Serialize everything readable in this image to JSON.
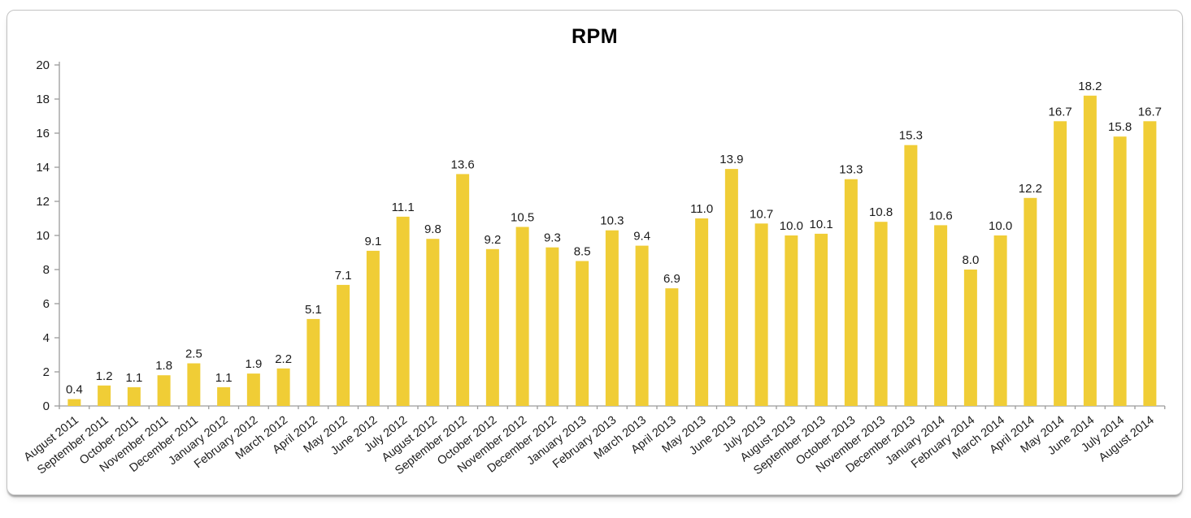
{
  "chart_data": {
    "type": "bar",
    "title": "RPM",
    "categories": [
      "August 2011",
      "September 2011",
      "October 2011",
      "November 2011",
      "December 2011",
      "January 2012",
      "February 2012",
      "March 2012",
      "April 2012",
      "May 2012",
      "June 2012",
      "July 2012",
      "August 2012",
      "September 2012",
      "October 2012",
      "November 2012",
      "December 2012",
      "January 2013",
      "February 2013",
      "March 2013",
      "April 2013",
      "May 2013",
      "June 2013",
      "July 2013",
      "August 2013",
      "September 2013",
      "October 2013",
      "November 2013",
      "December 2013",
      "January 2014",
      "February 2014",
      "March 2014",
      "April 2014",
      "May 2014",
      "June 2014",
      "July 2014",
      "August 2014"
    ],
    "values": [
      0.4,
      1.2,
      1.1,
      1.8,
      2.5,
      1.1,
      1.9,
      2.2,
      5.1,
      7.1,
      9.1,
      11.1,
      9.8,
      13.6,
      9.2,
      10.5,
      9.3,
      8.5,
      10.3,
      9.4,
      6.9,
      11.0,
      13.9,
      10.7,
      10.0,
      10.1,
      13.3,
      10.8,
      15.3,
      10.6,
      8.0,
      10.0,
      12.2,
      16.7,
      18.2,
      15.8,
      16.7
    ],
    "value_label_decimals": 1,
    "xlabel": "",
    "ylabel": "",
    "ylim": [
      0,
      20
    ],
    "ytick_step": 2,
    "grid": false,
    "legend": "none",
    "bar_color": "#F0CD36",
    "axis_color": "#9c9c9c",
    "text_color": "#1c1c1c"
  }
}
